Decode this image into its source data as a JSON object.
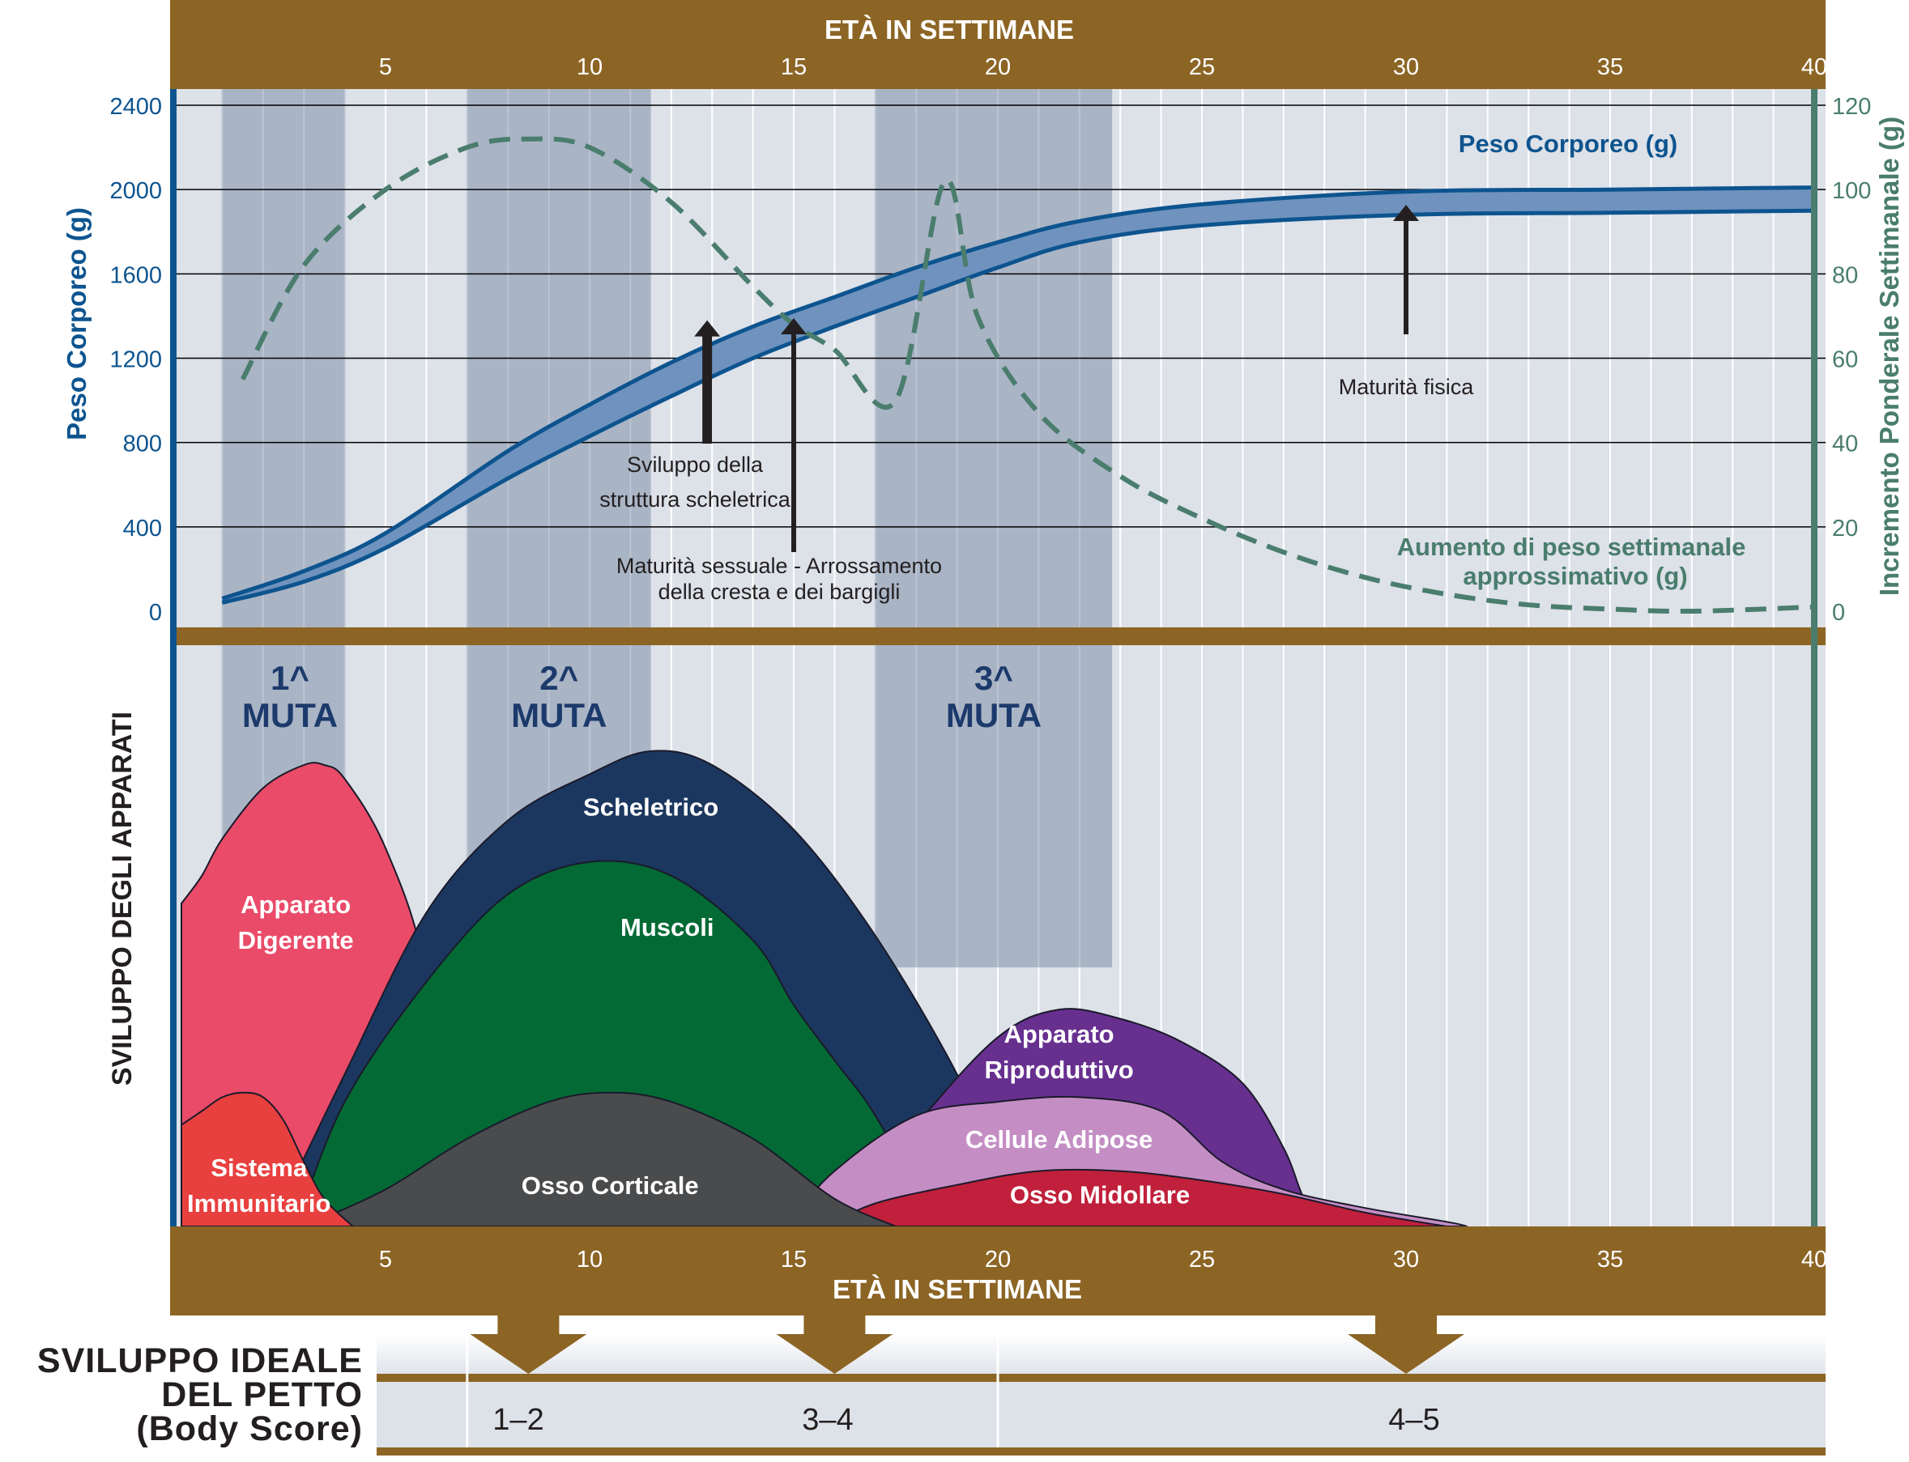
{
  "chart_data": {
    "type": "line",
    "top_axis_title": "ETÀ IN SETTIMANE",
    "bottom_axis_title": "ETÀ IN SETTIMANE",
    "x_ticks": [
      5,
      10,
      15,
      20,
      25,
      30,
      35,
      40
    ],
    "xlim": [
      0,
      40
    ],
    "left_axis": {
      "title": "Peso Corporeo (g)",
      "ticks": [
        0,
        400,
        800,
        1200,
        1600,
        2000,
        2400
      ],
      "ylim": [
        0,
        2400
      ]
    },
    "right_axis": {
      "title": "Incremento Ponderale Settimanale (g)",
      "ticks": [
        0,
        20,
        40,
        60,
        80,
        100,
        120
      ],
      "ylim": [
        0,
        120
      ]
    },
    "colors": {
      "brown": "#8c6525",
      "blue": "#0d548f",
      "green": "#4a7d6d",
      "plot_bg": "#dde1e8",
      "molt_band": "#a9b4c5",
      "navy": "#1c3a6b"
    },
    "series": [
      {
        "name": "Peso Corporeo (g)",
        "style": "band",
        "x": [
          1,
          3,
          5,
          8,
          10,
          12,
          14,
          16,
          18,
          20,
          22,
          25,
          30,
          35,
          40
        ],
        "upper": [
          60,
          190,
          370,
          760,
          980,
          1180,
          1350,
          1490,
          1630,
          1750,
          1850,
          1930,
          1990,
          2000,
          2010
        ],
        "lower": [
          40,
          140,
          300,
          630,
          830,
          1020,
          1200,
          1350,
          1490,
          1630,
          1750,
          1830,
          1880,
          1890,
          1900
        ]
      },
      {
        "name": "Aumento di peso settimanale approssimativo (g)",
        "style": "dashed",
        "x": [
          1.5,
          3,
          5,
          7,
          8.5,
          10,
          12,
          14,
          15,
          16,
          17.5,
          18.7,
          19.5,
          21,
          23,
          25,
          27,
          29,
          31,
          33,
          35,
          37,
          40
        ],
        "y": [
          55,
          82,
          100,
          110,
          112,
          110,
          97,
          77,
          68,
          62,
          50,
          102,
          70,
          47,
          32,
          22,
          14,
          8,
          4,
          1.5,
          0.5,
          0,
          1
        ]
      }
    ],
    "molts": [
      {
        "label_line1": "1^",
        "label_line2": "MUTA",
        "start": 1,
        "end": 4
      },
      {
        "label_line1": "2^",
        "label_line2": "MUTA",
        "start": 7,
        "end": 11.5
      },
      {
        "label_line1": "3^",
        "label_line2": "MUTA",
        "start": 17,
        "end": 22.8
      }
    ],
    "annotations": [
      {
        "text_lines": [
          "Sviluppo della",
          "struttura scheletrica"
        ],
        "x": 12.9,
        "y_tip": 1380
      },
      {
        "text_lines": [
          "Maturità sessuale - Arrossamento",
          "della cresta e dei bargigli"
        ],
        "x": 15,
        "y_tip": 1390
      },
      {
        "text_lines": [
          "Maturità fisica"
        ],
        "x": 30,
        "y_tip": 1920
      }
    ],
    "series_labels": {
      "weight": "Peso Corporeo (g)",
      "gain": [
        "Aumento di peso settimanale",
        "approssimativo (g)"
      ]
    },
    "development": {
      "axis_title": "SVILUPPO DEGLI APPARATI",
      "areas": [
        {
          "name_lines": [
            "Apparato",
            "Digerente"
          ],
          "color": "#e94b69",
          "x": [
            0,
            0.5,
            1,
            2,
            3,
            3.5,
            4,
            5,
            6,
            7
          ],
          "y": [
            0.7,
            0.76,
            0.84,
            0.95,
            1.0,
            1.0,
            0.97,
            0.82,
            0.55,
            0
          ],
          "label_x": 2.8,
          "label_y": 0.64
        },
        {
          "name_lines": [
            "Scheletrico"
          ],
          "color": "#1b375f",
          "x": [
            2.2,
            4,
            6,
            8,
            10,
            11.5,
            13,
            15,
            17,
            19,
            20,
            20.5
          ],
          "y": [
            0,
            0.33,
            0.68,
            0.88,
            0.98,
            1.03,
            1.0,
            0.86,
            0.63,
            0.33,
            0.12,
            0
          ],
          "label_x": 11.5,
          "label_y": 0.89
        },
        {
          "name_lines": [
            "Muscoli"
          ],
          "color": "#036a35",
          "x": [
            2.8,
            4,
            6,
            8,
            10,
            12,
            14,
            15,
            16,
            17,
            18.5
          ],
          "y": [
            0,
            0.27,
            0.53,
            0.72,
            0.79,
            0.76,
            0.62,
            0.48,
            0.36,
            0.24,
            0
          ],
          "label_x": 11.9,
          "label_y": 0.63
        },
        {
          "name_lines": [
            "Apparato",
            "Riproduttivo"
          ],
          "color": "#67308f",
          "x": [
            16,
            18,
            20,
            21.5,
            23,
            24.5,
            26,
            27,
            27.5,
            28
          ],
          "y": [
            0,
            0.22,
            0.41,
            0.47,
            0.45,
            0.4,
            0.31,
            0.17,
            0.06,
            0
          ],
          "label_x": 21.5,
          "label_y": 0.36
        },
        {
          "name_lines": [
            "Cellule Adipose"
          ],
          "color": "#c48ec4",
          "x": [
            14.8,
            16,
            18,
            20,
            22,
            24,
            25.5,
            27,
            29,
            31,
            31.5
          ],
          "y": [
            0,
            0.12,
            0.24,
            0.27,
            0.28,
            0.25,
            0.14,
            0.08,
            0.04,
            0.01,
            0
          ],
          "label_x": 21.5,
          "label_y": 0.17
        },
        {
          "name_lines": [
            "Osso Midollare"
          ],
          "color": "#c0203b",
          "x": [
            15.8,
            17,
            19,
            21,
            23,
            25,
            27,
            29,
            31
          ],
          "y": [
            0,
            0.05,
            0.09,
            0.12,
            0.12,
            0.1,
            0.07,
            0.03,
            0
          ],
          "label_x": 22.5,
          "label_y": 0.05
        },
        {
          "name_lines": [
            "Osso Corticale"
          ],
          "color": "#4a4b4d",
          "x": [
            3,
            5,
            7,
            9,
            10.5,
            12,
            14,
            16,
            17.5
          ],
          "y": [
            0,
            0.08,
            0.19,
            0.27,
            0.29,
            0.27,
            0.19,
            0.06,
            0
          ],
          "label_x": 10.5,
          "label_y": 0.07
        },
        {
          "name_lines": [
            "Sistema",
            "Immunitario"
          ],
          "color": "#e8403f",
          "x": [
            0,
            0.5,
            1,
            1.5,
            2,
            2.5,
            3,
            3.5,
            4.2
          ],
          "y": [
            0.22,
            0.25,
            0.28,
            0.29,
            0.28,
            0.23,
            0.14,
            0.06,
            0
          ],
          "label_x": 1.9,
          "label_y": 0.07
        }
      ]
    },
    "body_score": {
      "title_lines": [
        "SVILUPPO IDEALE",
        "DEL PETTO",
        "(Body Score)"
      ],
      "segments": [
        {
          "label": "1–2",
          "start": 0,
          "end": 7
        },
        {
          "label": "3–4",
          "start": 7,
          "end": 20
        },
        {
          "label": "4–5",
          "start": 20,
          "end": 40
        }
      ],
      "arrow_x": [
        8.5,
        16,
        30
      ]
    }
  }
}
